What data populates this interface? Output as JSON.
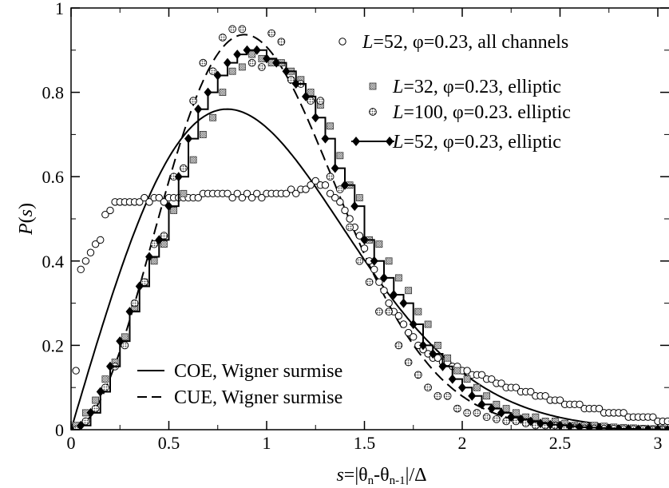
{
  "chart_data": {
    "type": "scatter",
    "xlabel": "s=|θn-θn-1|/Δ",
    "ylabel": "P(s)",
    "xlim": [
      0,
      3.1
    ],
    "ylim": [
      0,
      1
    ],
    "x_ticks": [
      0,
      0.5,
      1,
      1.5,
      2,
      2.5,
      3
    ],
    "x_tick_labels": [
      "0",
      "0.5",
      "1",
      "1.5",
      "2",
      "2.5",
      "3"
    ],
    "y_ticks": [
      0,
      0.2,
      0.4,
      0.6,
      0.8,
      1
    ],
    "y_tick_labels": [
      "0",
      "0.2",
      "0.4",
      "0.6",
      "0.8",
      "1"
    ],
    "grid": false,
    "legend_position": "top-right",
    "legend_bottom_position": "bottom-left",
    "series": [
      {
        "name": "L=52, φ=0.23, all channels",
        "marker": "open-circle",
        "x": [
          0.025,
          0.05,
          0.075,
          0.1,
          0.125,
          0.15,
          0.175,
          0.2,
          0.225,
          0.25,
          0.275,
          0.3,
          0.325,
          0.35,
          0.375,
          0.4,
          0.425,
          0.45,
          0.475,
          0.5,
          0.525,
          0.55,
          0.575,
          0.6,
          0.625,
          0.65,
          0.675,
          0.7,
          0.725,
          0.75,
          0.775,
          0.8,
          0.825,
          0.85,
          0.875,
          0.9,
          0.925,
          0.95,
          0.975,
          1.0,
          1.025,
          1.05,
          1.075,
          1.1,
          1.125,
          1.15,
          1.175,
          1.2,
          1.225,
          1.25,
          1.275,
          1.3,
          1.325,
          1.35,
          1.375,
          1.4,
          1.425,
          1.45,
          1.475,
          1.5,
          1.525,
          1.55,
          1.575,
          1.6,
          1.625,
          1.65,
          1.675,
          1.7,
          1.725,
          1.75,
          1.775,
          1.8,
          1.825,
          1.85,
          1.875,
          1.9,
          1.925,
          1.95,
          1.975,
          2.0,
          2.025,
          2.05,
          2.075,
          2.1,
          2.125,
          2.15,
          2.175,
          2.2,
          2.225,
          2.25,
          2.275,
          2.3,
          2.325,
          2.35,
          2.375,
          2.4,
          2.425,
          2.45,
          2.475,
          2.5,
          2.525,
          2.55,
          2.575,
          2.6,
          2.625,
          2.65,
          2.675,
          2.7,
          2.725,
          2.75,
          2.775,
          2.8,
          2.825,
          2.85,
          2.875,
          2.9,
          2.925,
          2.95,
          2.975,
          3.0,
          3.025,
          3.05,
          3.075
        ],
        "values": [
          0.14,
          0.38,
          0.4,
          0.42,
          0.44,
          0.45,
          0.51,
          0.52,
          0.54,
          0.54,
          0.54,
          0.54,
          0.54,
          0.54,
          0.55,
          0.54,
          0.55,
          0.55,
          0.54,
          0.55,
          0.55,
          0.55,
          0.55,
          0.55,
          0.55,
          0.55,
          0.56,
          0.56,
          0.56,
          0.56,
          0.56,
          0.56,
          0.55,
          0.56,
          0.55,
          0.56,
          0.55,
          0.56,
          0.55,
          0.56,
          0.56,
          0.56,
          0.56,
          0.56,
          0.57,
          0.56,
          0.57,
          0.57,
          0.58,
          0.59,
          0.58,
          0.58,
          0.56,
          0.55,
          0.54,
          0.52,
          0.5,
          0.48,
          0.46,
          0.43,
          0.4,
          0.38,
          0.35,
          0.33,
          0.3,
          0.28,
          0.27,
          0.25,
          0.23,
          0.22,
          0.2,
          0.19,
          0.18,
          0.17,
          0.17,
          0.16,
          0.16,
          0.15,
          0.15,
          0.14,
          0.14,
          0.13,
          0.13,
          0.13,
          0.12,
          0.12,
          0.11,
          0.11,
          0.1,
          0.1,
          0.1,
          0.09,
          0.09,
          0.09,
          0.08,
          0.08,
          0.08,
          0.07,
          0.07,
          0.07,
          0.06,
          0.06,
          0.06,
          0.06,
          0.05,
          0.05,
          0.05,
          0.05,
          0.04,
          0.04,
          0.04,
          0.04,
          0.04,
          0.03,
          0.03,
          0.03,
          0.03,
          0.03,
          0.03,
          0.02,
          0.02,
          0.02,
          0.02
        ]
      },
      {
        "name": "L=32, φ=0.23, elliptic",
        "marker": "hatched-square",
        "x": [
          0.025,
          0.075,
          0.125,
          0.175,
          0.225,
          0.275,
          0.325,
          0.375,
          0.425,
          0.475,
          0.525,
          0.575,
          0.625,
          0.675,
          0.725,
          0.775,
          0.825,
          0.875,
          0.925,
          0.975,
          1.025,
          1.075,
          1.125,
          1.175,
          1.225,
          1.275,
          1.325,
          1.375,
          1.425,
          1.475,
          1.525,
          1.575,
          1.625,
          1.675,
          1.725,
          1.775,
          1.825,
          1.875,
          1.925,
          1.975,
          2.025,
          2.075,
          2.125,
          2.175,
          2.225,
          2.275,
          2.325,
          2.375,
          2.425,
          2.475,
          2.525,
          2.575,
          2.625,
          2.675,
          2.725,
          2.775,
          2.825,
          2.875,
          2.925,
          2.975,
          3.025,
          3.075
        ],
        "values": [
          0.01,
          0.04,
          0.07,
          0.12,
          0.16,
          0.22,
          0.29,
          0.35,
          0.4,
          0.44,
          0.52,
          0.56,
          0.64,
          0.7,
          0.74,
          0.8,
          0.85,
          0.86,
          0.89,
          0.88,
          0.87,
          0.87,
          0.85,
          0.83,
          0.8,
          0.77,
          0.72,
          0.65,
          0.58,
          0.55,
          0.45,
          0.44,
          0.4,
          0.36,
          0.33,
          0.28,
          0.25,
          0.2,
          0.17,
          0.14,
          0.12,
          0.1,
          0.08,
          0.06,
          0.05,
          0.04,
          0.03,
          0.03,
          0.02,
          0.02,
          0.015,
          0.01,
          0.01,
          0.01,
          0.008,
          0.006,
          0.005,
          0.004,
          0.003,
          0.002,
          0.002,
          0.001
        ]
      },
      {
        "name": "L=100, φ=0.23. elliptic",
        "marker": "shaded-circle",
        "x": [
          0.025,
          0.075,
          0.125,
          0.175,
          0.225,
          0.275,
          0.325,
          0.375,
          0.425,
          0.475,
          0.525,
          0.575,
          0.625,
          0.675,
          0.725,
          0.775,
          0.825,
          0.875,
          0.925,
          0.975,
          1.025,
          1.075,
          1.125,
          1.175,
          1.225,
          1.275,
          1.325,
          1.375,
          1.425,
          1.475,
          1.525,
          1.575,
          1.625,
          1.675,
          1.725,
          1.775,
          1.825,
          1.875,
          1.925,
          1.975,
          2.025,
          2.075,
          2.125,
          2.175,
          2.225,
          2.275,
          2.325,
          2.375,
          2.425,
          2.475,
          2.525,
          2.575,
          2.625,
          2.675,
          2.725,
          2.775,
          2.825,
          2.875,
          2.925,
          2.975,
          3.025,
          3.075
        ],
        "values": [
          0.0,
          0.02,
          0.05,
          0.1,
          0.15,
          0.2,
          0.3,
          0.35,
          0.44,
          0.46,
          0.6,
          0.62,
          0.78,
          0.87,
          0.85,
          0.93,
          0.95,
          0.95,
          0.87,
          0.86,
          0.94,
          0.92,
          0.83,
          0.82,
          0.78,
          0.78,
          0.6,
          0.57,
          0.48,
          0.4,
          0.35,
          0.28,
          0.28,
          0.2,
          0.16,
          0.13,
          0.1,
          0.08,
          0.08,
          0.05,
          0.04,
          0.04,
          0.03,
          0.025,
          0.02,
          0.02,
          0.015,
          0.01,
          0.01,
          0.01,
          0.005,
          0.005,
          0.003,
          0.003,
          0.002,
          0.002,
          0.001,
          0.001,
          0.001,
          0.0,
          0.0,
          0.0
        ]
      },
      {
        "name": "L=52, φ=0.23, elliptic",
        "marker": "filled-diamond-line",
        "x": [
          0.0,
          0.05,
          0.1,
          0.15,
          0.2,
          0.25,
          0.3,
          0.35,
          0.4,
          0.45,
          0.5,
          0.55,
          0.6,
          0.65,
          0.7,
          0.75,
          0.8,
          0.85,
          0.9,
          0.95,
          1.0,
          1.05,
          1.1,
          1.15,
          1.2,
          1.25,
          1.3,
          1.35,
          1.4,
          1.45,
          1.5,
          1.55,
          1.6,
          1.65,
          1.7,
          1.75,
          1.8,
          1.85,
          1.9,
          1.95,
          2.0,
          2.05,
          2.1,
          2.15,
          2.2,
          2.25,
          2.3,
          2.35,
          2.4,
          2.45,
          2.5,
          2.55,
          2.6,
          2.65,
          2.7,
          2.75,
          2.8,
          2.85,
          2.9,
          2.95,
          3.0,
          3.05,
          3.1
        ],
        "values": [
          0.0,
          0.01,
          0.04,
          0.09,
          0.15,
          0.21,
          0.28,
          0.34,
          0.41,
          0.45,
          0.53,
          0.6,
          0.69,
          0.76,
          0.8,
          0.84,
          0.87,
          0.89,
          0.9,
          0.9,
          0.88,
          0.87,
          0.85,
          0.82,
          0.79,
          0.74,
          0.69,
          0.62,
          0.58,
          0.53,
          0.45,
          0.4,
          0.36,
          0.32,
          0.3,
          0.25,
          0.2,
          0.18,
          0.15,
          0.12,
          0.1,
          0.08,
          0.06,
          0.05,
          0.04,
          0.03,
          0.025,
          0.02,
          0.015,
          0.012,
          0.01,
          0.008,
          0.006,
          0.005,
          0.004,
          0.003,
          0.002,
          0.002,
          0.001,
          0.001,
          0.001,
          0.0,
          0.0
        ]
      },
      {
        "name": "COE, Wigner surmise",
        "style": "solid-line",
        "formula": "(π/2) s exp(-π s²/4)"
      },
      {
        "name": "CUE, Wigner surmise",
        "style": "dashed-line",
        "formula": "(32/π²) s² exp(-4 s²/π)"
      }
    ]
  }
}
